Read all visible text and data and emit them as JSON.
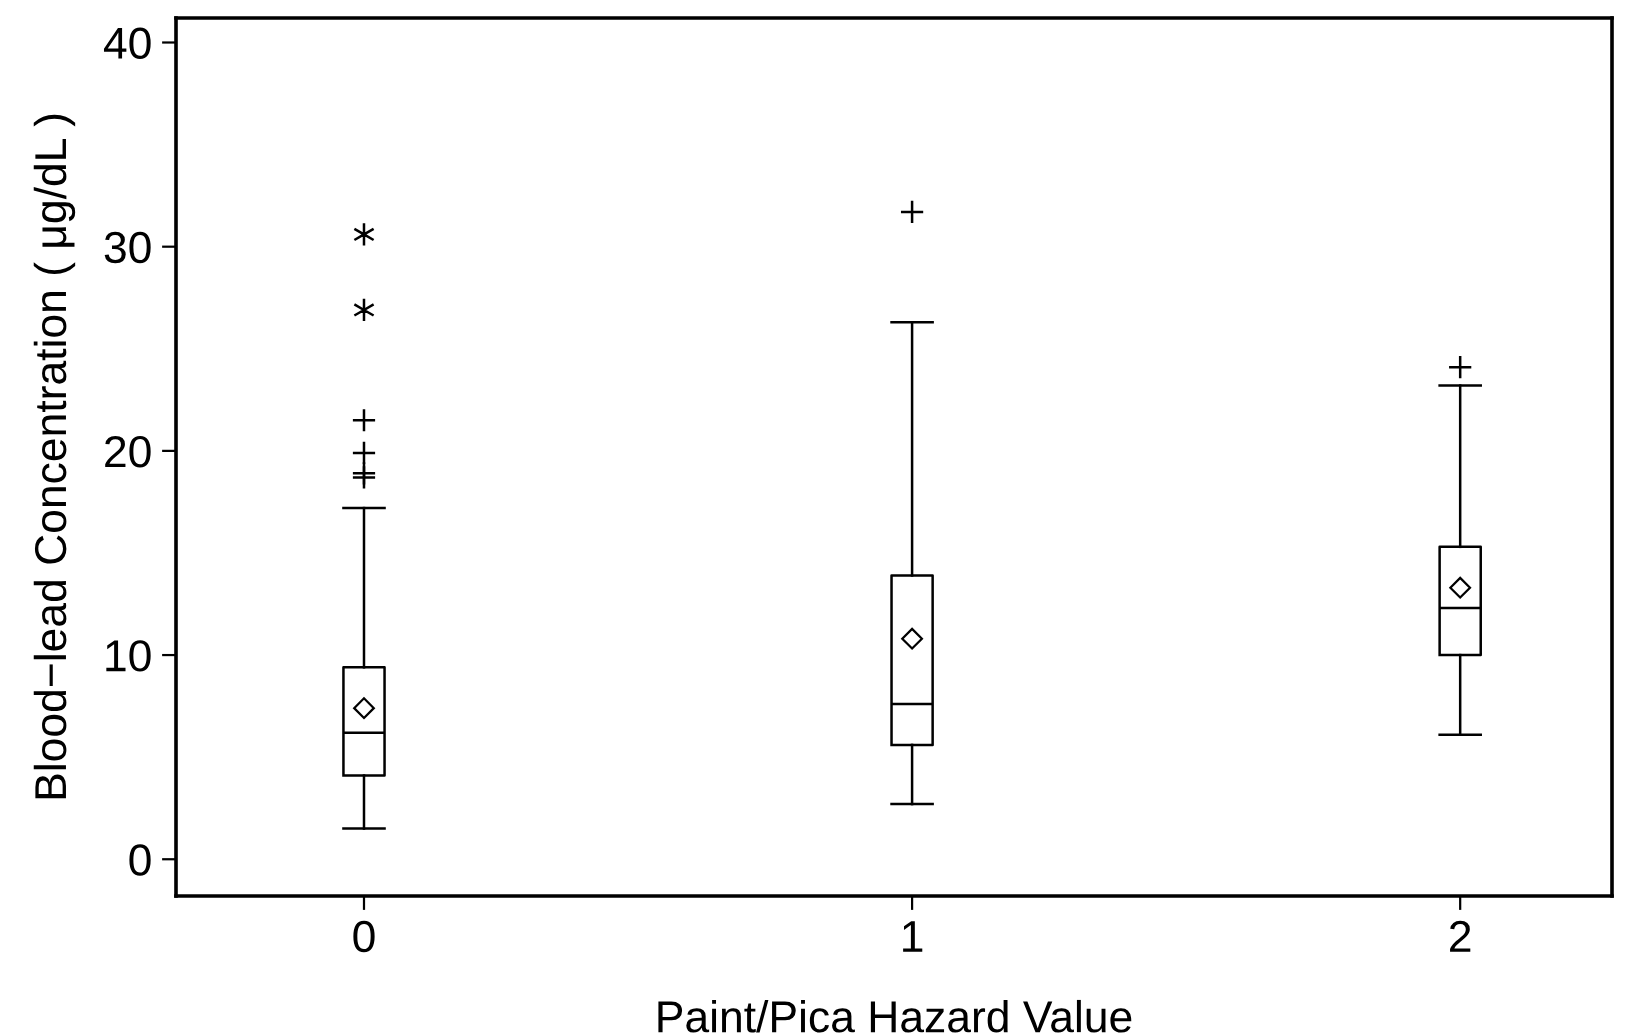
{
  "chart_data": {
    "type": "box",
    "xlabel": "Paint/Pica Hazard Value",
    "ylabel": "Blood−lead Concentration ( μg/dL )",
    "categories": [
      "0",
      "1",
      "2"
    ],
    "boxes": [
      {
        "low": 1.5,
        "q1": 4.1,
        "median": 6.2,
        "q3": 9.4,
        "high": 17.2,
        "mean": 7.4,
        "outliers": [
          30.6,
          26.9,
          21.5,
          19.9,
          18.9,
          18.7
        ]
      },
      {
        "low": 2.7,
        "q1": 5.6,
        "median": 7.6,
        "q3": 13.9,
        "high": 26.3,
        "mean": 10.8,
        "outliers": [
          31.7
        ]
      },
      {
        "low": 6.1,
        "q1": 10.0,
        "median": 12.3,
        "q3": 15.3,
        "high": 23.2,
        "mean": 13.3,
        "outliers": [
          24.1
        ]
      }
    ],
    "ylim": [
      -1.8,
      41.2
    ],
    "yticks": [
      0,
      10,
      20,
      30,
      40
    ],
    "grid": false,
    "legend": false
  }
}
